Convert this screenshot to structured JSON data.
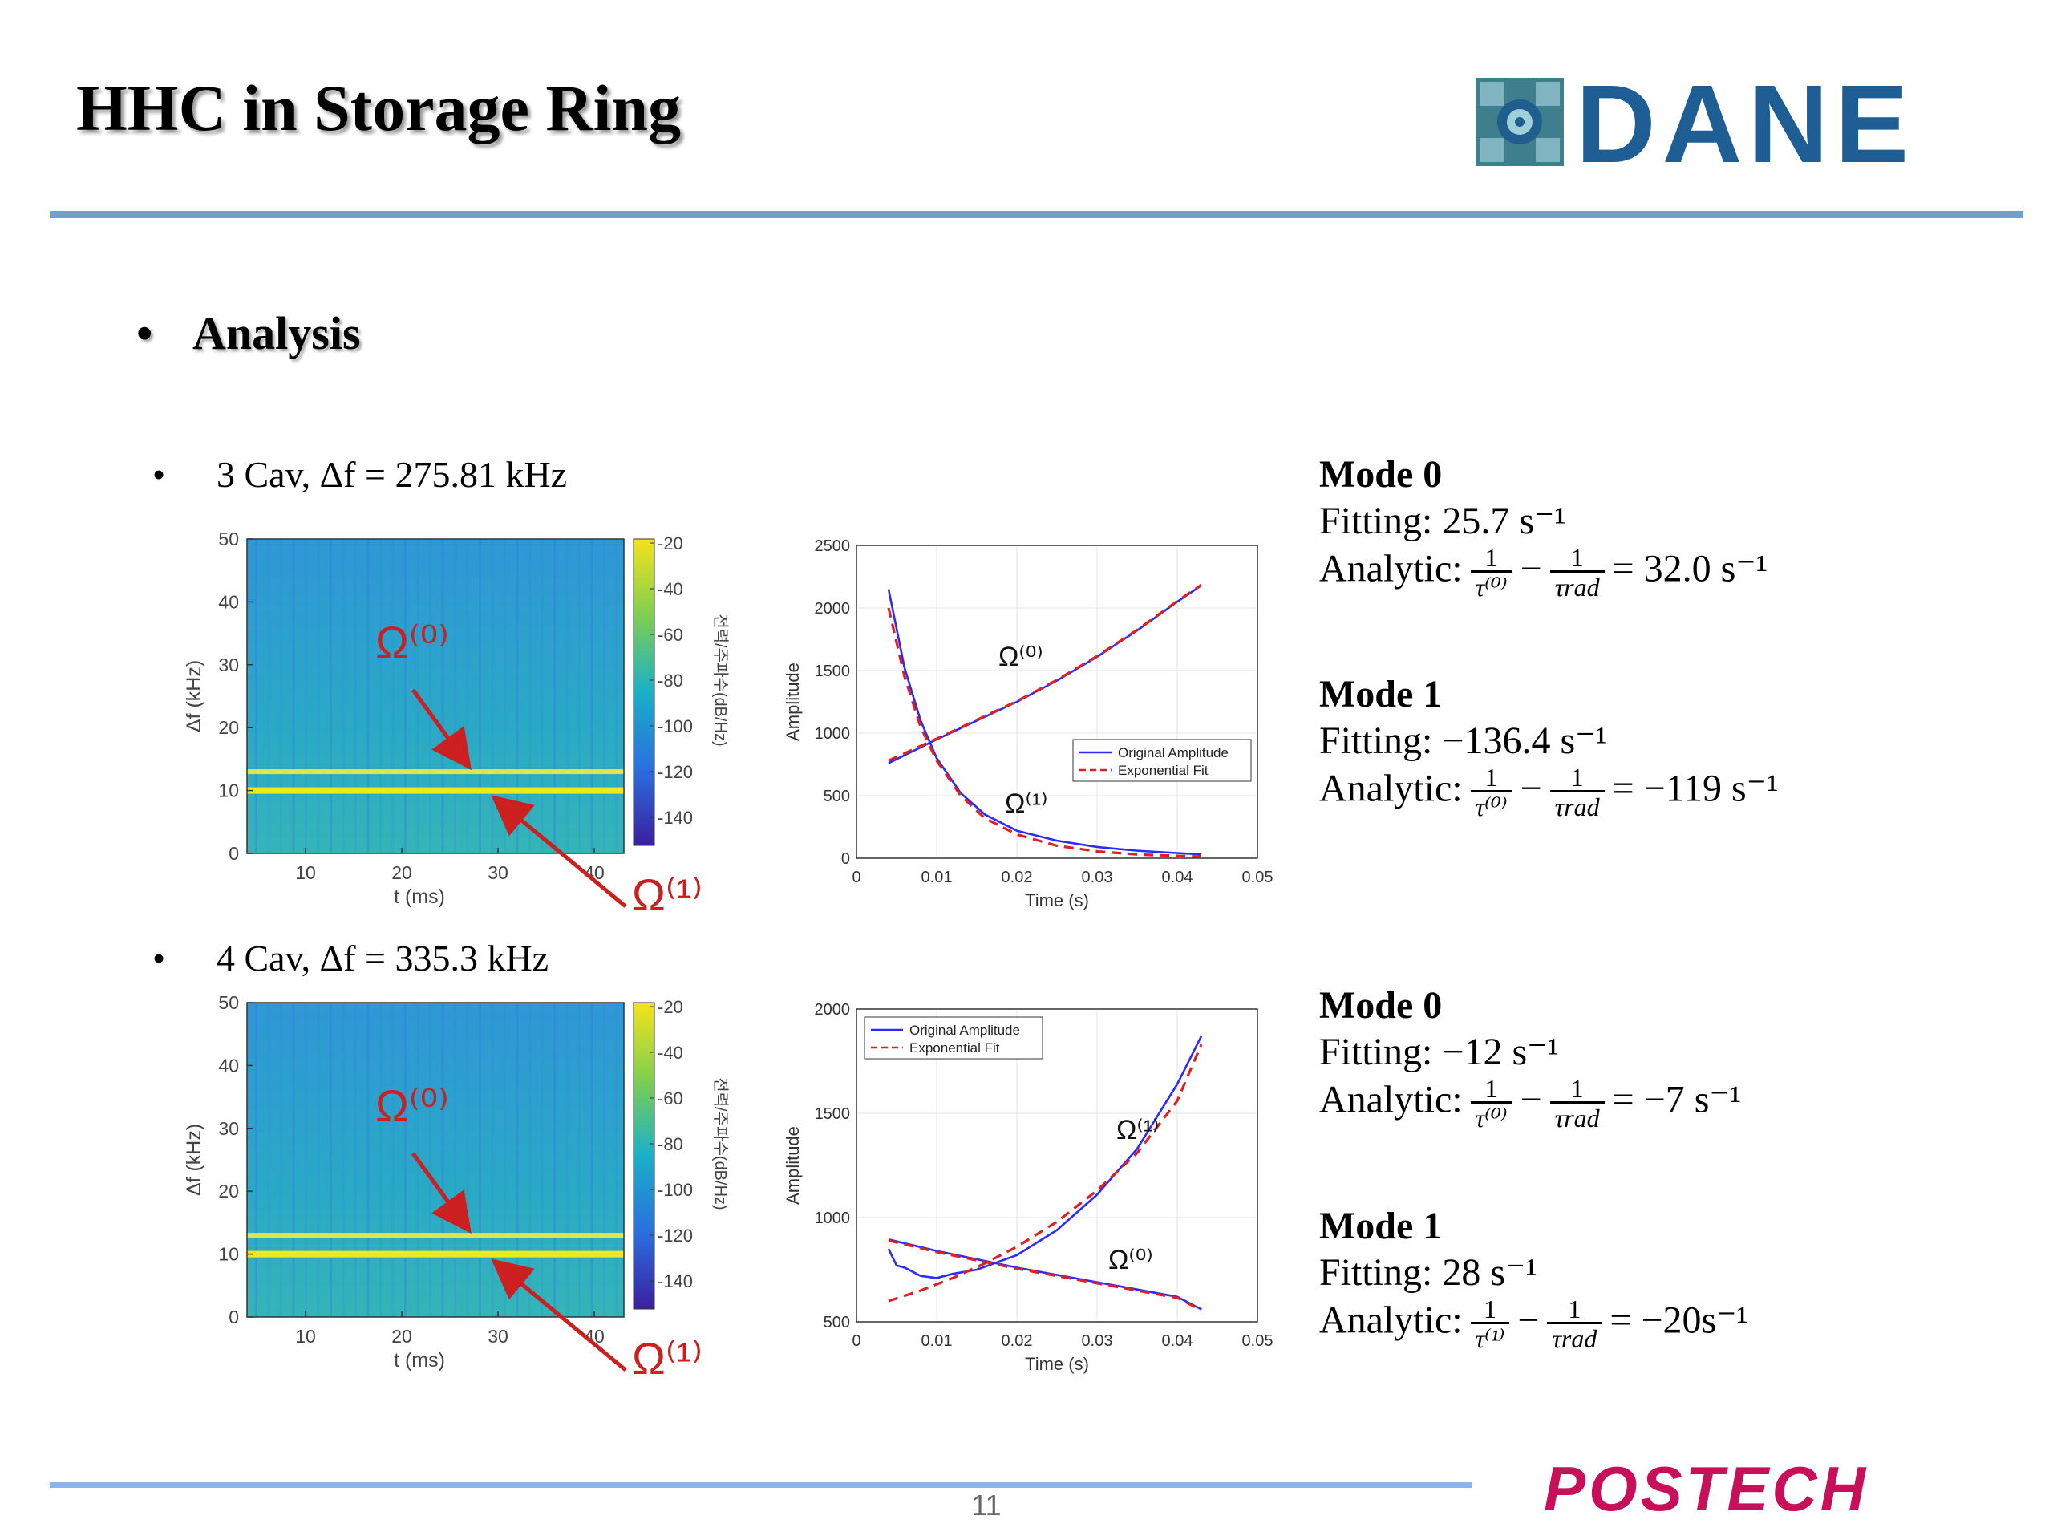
{
  "header": {
    "title": "HHC in Storage Ring",
    "logo_text": "DANE"
  },
  "section": {
    "bullet": "•",
    "heading": "Analysis"
  },
  "cases": [
    {
      "bullet": "•",
      "label": "3 Cav, Δf = 275.81 kHz",
      "modes": [
        {
          "title": "Mode 0",
          "fitting": "Fitting: 25.7 s⁻¹",
          "analytic_prefix": "Analytic:",
          "frac1_num": "1",
          "frac1_den": "τ⁽⁰⁾",
          "minus": "−",
          "frac2_num": "1",
          "frac2_den": "τrad",
          "result": "= 32.0 s⁻¹"
        },
        {
          "title": "Mode 1",
          "fitting": "Fitting: −136.4 s⁻¹",
          "analytic_prefix": "Analytic:",
          "frac1_num": "1",
          "frac1_den": "τ⁽⁰⁾",
          "minus": "−",
          "frac2_num": "1",
          "frac2_den": "τrad",
          "result": "= −119 s⁻¹"
        }
      ]
    },
    {
      "bullet": "•",
      "label": "4 Cav, Δf = 335.3 kHz",
      "modes": [
        {
          "title": "Mode 0",
          "fitting": "Fitting: −12 s⁻¹",
          "analytic_prefix": "Analytic:",
          "frac1_num": "1",
          "frac1_den": "τ⁽⁰⁾",
          "minus": "−",
          "frac2_num": "1",
          "frac2_den": "τrad",
          "result": "= −7 s⁻¹"
        },
        {
          "title": "Mode 1",
          "fitting": "Fitting: 28 s⁻¹",
          "analytic_prefix": "Analytic:",
          "frac1_num": "1",
          "frac1_den": "τ⁽¹⁾",
          "minus": "−",
          "frac2_num": "1",
          "frac2_den": "τrad",
          "result": "= −20s⁻¹"
        }
      ]
    }
  ],
  "spectrogram": {
    "ylabel": "Δf (kHz)",
    "xlabel": "t (ms)",
    "cbar_label": "전력/주파수(dB/Hz)",
    "xticks": [
      "10",
      "20",
      "30",
      "40"
    ],
    "yticks": [
      "0",
      "10",
      "20",
      "30",
      "40",
      "50"
    ],
    "cbar_ticks": [
      "-20",
      "-40",
      "-60",
      "-80",
      "-100",
      "-120",
      "-140"
    ],
    "omega0": "Ω⁽⁰⁾",
    "omega1": "Ω⁽¹⁾",
    "annotation_color": "#cc1f1f"
  },
  "footer": {
    "page_number": "11",
    "logo_text": "POSTECH",
    "logo_color": "#c8105a"
  },
  "chart_data": [
    {
      "type": "line",
      "xlabel": "Time (s)",
      "ylabel": "Amplitude",
      "xlim": [
        0,
        0.05
      ],
      "ylim": [
        0,
        2500
      ],
      "xticks": [
        "0",
        "0.01",
        "0.02",
        "0.03",
        "0.04",
        "0.05"
      ],
      "yticks": [
        "0",
        "500",
        "1000",
        "1500",
        "2000",
        "2500"
      ],
      "legend": [
        "Original Amplitude",
        "Exponential Fit"
      ],
      "legend_position": "middle-right",
      "annotations": [
        "Ω⁽⁰⁾",
        "Ω⁽¹⁾"
      ],
      "series": [
        {
          "name": "Original Amplitude",
          "color": "#2b2bff",
          "x": [
            0.004,
            0.01,
            0.015,
            0.02,
            0.025,
            0.03,
            0.035,
            0.04,
            0.043
          ],
          "y": [
            760,
            950,
            1100,
            1250,
            1420,
            1610,
            1820,
            2050,
            2180
          ]
        },
        {
          "name": "Exponential Fit",
          "color": "#e02020",
          "x": [
            0.004,
            0.01,
            0.015,
            0.02,
            0.025,
            0.03,
            0.035,
            0.04,
            0.043
          ],
          "y": [
            780,
            955,
            1105,
            1255,
            1425,
            1615,
            1825,
            2055,
            2185
          ]
        },
        {
          "name": "Original Amplitude",
          "color": "#2b2bff",
          "x": [
            0.004,
            0.006,
            0.008,
            0.01,
            0.013,
            0.016,
            0.02,
            0.025,
            0.03,
            0.035,
            0.043
          ],
          "y": [
            2150,
            1520,
            1100,
            800,
            520,
            350,
            220,
            140,
            90,
            60,
            30
          ]
        },
        {
          "name": "Exponential Fit",
          "color": "#e02020",
          "x": [
            0.004,
            0.006,
            0.008,
            0.01,
            0.013,
            0.016,
            0.02,
            0.025,
            0.03,
            0.035,
            0.043
          ],
          "y": [
            2000,
            1450,
            1050,
            780,
            500,
            320,
            190,
            100,
            55,
            30,
            12
          ]
        }
      ]
    },
    {
      "type": "line",
      "xlabel": "Time (s)",
      "ylabel": "Amplitude",
      "xlim": [
        0,
        0.05
      ],
      "ylim": [
        500,
        2000
      ],
      "xticks": [
        "0",
        "0.01",
        "0.02",
        "0.03",
        "0.04",
        "0.05"
      ],
      "yticks": [
        "500",
        "1000",
        "1500",
        "2000"
      ],
      "legend": [
        "Original Amplitude",
        "Exponential Fit"
      ],
      "legend_position": "top-left",
      "annotations": [
        "Ω⁽¹⁾",
        "Ω⁽⁰⁾"
      ],
      "series": [
        {
          "name": "Original Amplitude",
          "color": "#2b2bff",
          "x": [
            0.004,
            0.005,
            0.006,
            0.008,
            0.01,
            0.012,
            0.015,
            0.02,
            0.025,
            0.03,
            0.035,
            0.04,
            0.043
          ],
          "y": [
            850,
            770,
            760,
            720,
            710,
            730,
            750,
            820,
            940,
            1110,
            1330,
            1640,
            1870
          ]
        },
        {
          "name": "Exponential Fit",
          "color": "#e02020",
          "x": [
            0.004,
            0.008,
            0.012,
            0.016,
            0.02,
            0.025,
            0.03,
            0.035,
            0.04,
            0.043
          ],
          "y": [
            600,
            650,
            710,
            780,
            860,
            980,
            1130,
            1310,
            1560,
            1830
          ]
        },
        {
          "name": "Original Amplitude",
          "color": "#2b2bff",
          "x": [
            0.004,
            0.01,
            0.02,
            0.03,
            0.04,
            0.043
          ],
          "y": [
            895,
            840,
            760,
            690,
            620,
            560
          ]
        },
        {
          "name": "Exponential Fit",
          "color": "#e02020",
          "x": [
            0.004,
            0.01,
            0.02,
            0.03,
            0.04,
            0.043
          ],
          "y": [
            890,
            835,
            755,
            685,
            615,
            556
          ]
        }
      ]
    }
  ]
}
